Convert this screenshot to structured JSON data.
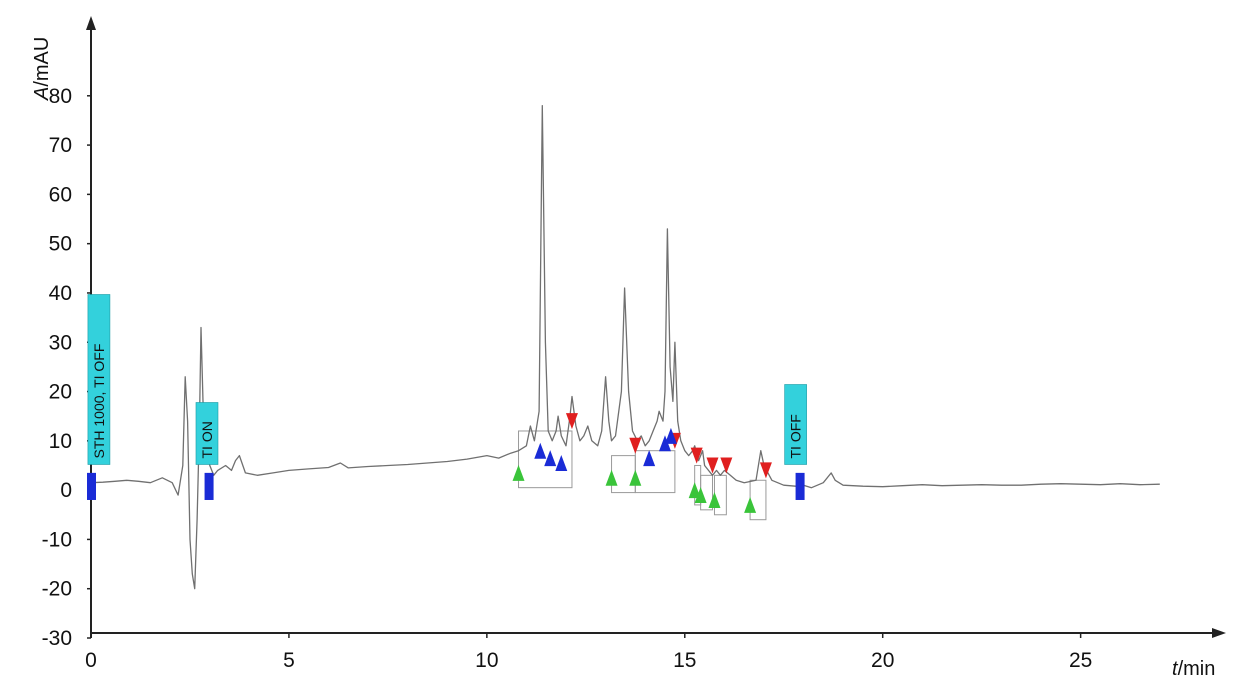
{
  "chart_data": {
    "type": "line",
    "ylabel": "A/mAU",
    "xlabel": "t/min",
    "xlim": [
      0,
      27.5
    ],
    "ylim": [
      -30,
      90
    ],
    "xticks": [
      0,
      5,
      10,
      15,
      20,
      25
    ],
    "yticks": [
      80,
      70,
      60,
      50,
      40,
      30,
      20,
      10,
      0,
      -10,
      -20,
      -30
    ],
    "grid": false,
    "legend": "none",
    "series": [
      {
        "color": "#707070",
        "points": [
          [
            0,
            1.5
          ],
          [
            0.3,
            1.6
          ],
          [
            0.6,
            1.8
          ],
          [
            0.9,
            2
          ],
          [
            1.2,
            1.8
          ],
          [
            1.5,
            1.5
          ],
          [
            1.8,
            2.5
          ],
          [
            2.05,
            1.5
          ],
          [
            2.2,
            -1
          ],
          [
            2.32,
            5
          ],
          [
            2.38,
            23
          ],
          [
            2.44,
            14
          ],
          [
            2.5,
            -10
          ],
          [
            2.56,
            -17
          ],
          [
            2.62,
            -20
          ],
          [
            2.68,
            -6
          ],
          [
            2.74,
            14
          ],
          [
            2.78,
            33
          ],
          [
            2.83,
            18
          ],
          [
            2.9,
            8
          ],
          [
            3.0,
            5
          ],
          [
            3.1,
            3
          ],
          [
            3.2,
            4
          ],
          [
            3.4,
            5
          ],
          [
            3.55,
            4
          ],
          [
            3.65,
            6
          ],
          [
            3.75,
            7
          ],
          [
            3.9,
            3.5
          ],
          [
            4.2,
            3
          ],
          [
            4.6,
            3.5
          ],
          [
            5.0,
            4
          ],
          [
            5.5,
            4.3
          ],
          [
            6.0,
            4.6
          ],
          [
            6.3,
            5.5
          ],
          [
            6.5,
            4.5
          ],
          [
            7.0,
            4.8
          ],
          [
            7.5,
            5
          ],
          [
            8.0,
            5.2
          ],
          [
            8.5,
            5.5
          ],
          [
            9.0,
            5.8
          ],
          [
            9.5,
            6.3
          ],
          [
            10.0,
            7
          ],
          [
            10.3,
            6.5
          ],
          [
            10.6,
            7.5
          ],
          [
            10.8,
            8
          ],
          [
            11.0,
            9
          ],
          [
            11.1,
            13
          ],
          [
            11.2,
            10
          ],
          [
            11.32,
            16
          ],
          [
            11.4,
            78
          ],
          [
            11.48,
            30
          ],
          [
            11.55,
            12
          ],
          [
            11.65,
            10
          ],
          [
            11.75,
            12
          ],
          [
            11.8,
            15
          ],
          [
            11.88,
            11
          ],
          [
            12.0,
            9
          ],
          [
            12.1,
            15
          ],
          [
            12.15,
            19
          ],
          [
            12.25,
            13
          ],
          [
            12.35,
            10
          ],
          [
            12.45,
            11
          ],
          [
            12.55,
            13
          ],
          [
            12.65,
            10
          ],
          [
            12.8,
            9
          ],
          [
            12.9,
            12
          ],
          [
            13.0,
            23
          ],
          [
            13.08,
            14
          ],
          [
            13.15,
            10
          ],
          [
            13.25,
            11
          ],
          [
            13.4,
            20
          ],
          [
            13.48,
            41
          ],
          [
            13.58,
            20
          ],
          [
            13.68,
            12
          ],
          [
            13.8,
            10
          ],
          [
            13.9,
            11
          ],
          [
            14.0,
            9
          ],
          [
            14.1,
            10
          ],
          [
            14.2,
            12
          ],
          [
            14.3,
            14
          ],
          [
            14.35,
            16
          ],
          [
            14.45,
            14
          ],
          [
            14.5,
            20
          ],
          [
            14.56,
            53
          ],
          [
            14.63,
            25
          ],
          [
            14.7,
            18
          ],
          [
            14.75,
            30
          ],
          [
            14.82,
            14
          ],
          [
            14.9,
            10
          ],
          [
            15.0,
            8
          ],
          [
            15.1,
            7
          ],
          [
            15.2,
            8
          ],
          [
            15.25,
            9
          ],
          [
            15.35,
            6
          ],
          [
            15.45,
            8
          ],
          [
            15.5,
            5
          ],
          [
            15.6,
            4
          ],
          [
            15.7,
            3
          ],
          [
            15.8,
            4
          ],
          [
            15.9,
            3
          ],
          [
            16.0,
            4
          ],
          [
            16.15,
            3
          ],
          [
            16.3,
            2
          ],
          [
            16.5,
            1.5
          ],
          [
            16.8,
            2
          ],
          [
            16.92,
            8
          ],
          [
            17.0,
            5
          ],
          [
            17.2,
            2
          ],
          [
            17.5,
            1
          ],
          [
            17.8,
            0.8
          ],
          [
            18.0,
            1
          ],
          [
            18.2,
            0.5
          ],
          [
            18.5,
            1.5
          ],
          [
            18.7,
            3.5
          ],
          [
            18.8,
            2
          ],
          [
            19.0,
            1
          ],
          [
            19.5,
            0.8
          ],
          [
            20.0,
            0.7
          ],
          [
            20.5,
            0.9
          ],
          [
            21.0,
            1.1
          ],
          [
            21.5,
            0.9
          ],
          [
            22.0,
            1
          ],
          [
            22.5,
            1.1
          ],
          [
            23.0,
            1
          ],
          [
            23.5,
            1
          ],
          [
            24.0,
            1.2
          ],
          [
            24.5,
            1.3
          ],
          [
            25.0,
            1.2
          ],
          [
            25.5,
            1.1
          ],
          [
            26.0,
            1.3
          ],
          [
            26.5,
            1.1
          ],
          [
            27.0,
            1.2
          ]
        ]
      }
    ],
    "annotations": [
      {
        "label": "STH 1000, TI OFF",
        "x": 0.2
      },
      {
        "label": "TI ON",
        "x": 2.93
      },
      {
        "label": "TI OFF",
        "x": 17.8
      }
    ],
    "event_markers_x": [
      0,
      2.97,
      17.9
    ],
    "peak_start_markers": [
      {
        "x": 10.8,
        "y": 3.5
      },
      {
        "x": 13.15,
        "y": 2.5
      },
      {
        "x": 13.75,
        "y": 2.5
      },
      {
        "x": 15.25,
        "y": 0
      },
      {
        "x": 15.4,
        "y": -1
      },
      {
        "x": 15.75,
        "y": -2
      },
      {
        "x": 16.65,
        "y": -3
      }
    ],
    "peak_end_markers": [
      {
        "x": 12.15,
        "y": 14
      },
      {
        "x": 13.75,
        "y": 9
      },
      {
        "x": 14.75,
        "y": 10
      },
      {
        "x": 15.3,
        "y": 7
      },
      {
        "x": 15.7,
        "y": 5
      },
      {
        "x": 16.05,
        "y": 5
      },
      {
        "x": 17.05,
        "y": 4
      }
    ],
    "peak_apex_markers": [
      {
        "x": 11.35,
        "y": 8
      },
      {
        "x": 11.6,
        "y": 6.5
      },
      {
        "x": 11.88,
        "y": 5.5
      },
      {
        "x": 14.1,
        "y": 6.5
      },
      {
        "x": 14.5,
        "y": 9.5
      },
      {
        "x": 14.65,
        "y": 11
      }
    ],
    "colors": {
      "trace": "#707070",
      "annotation_fill": "#33d1dc",
      "event_marker": "#1a2bd6",
      "peak_start": "#3ac43a",
      "peak_end": "#e01f1f",
      "peak_apex": "#1a2bd6",
      "axis": "#222222"
    }
  }
}
